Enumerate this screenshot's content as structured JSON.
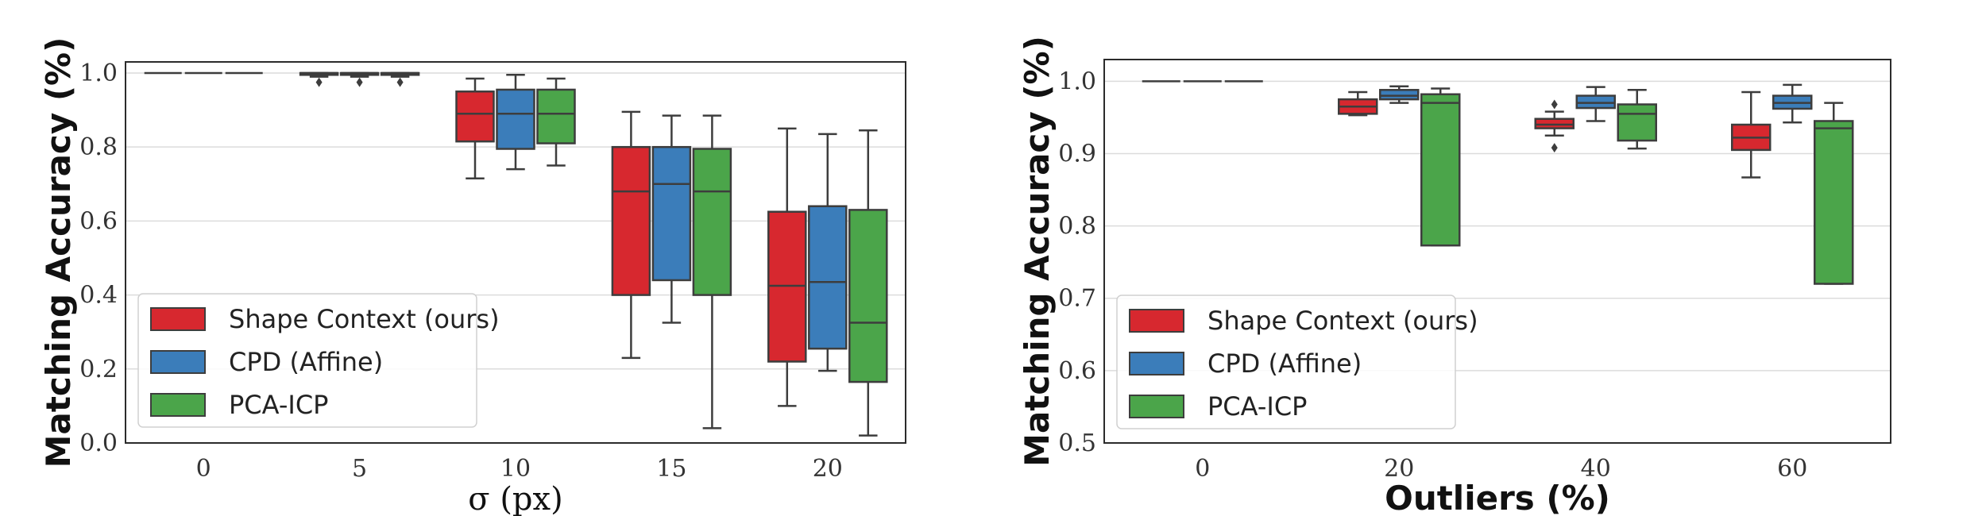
{
  "chart_data": [
    {
      "type": "box",
      "title": "",
      "xlabel": "σ (px)",
      "ylabel": "Matching Accuracy (%)",
      "ylim": [
        0.0,
        1.03
      ],
      "yticks": [
        "0.0",
        "0.2",
        "0.4",
        "0.6",
        "0.8",
        "1.0"
      ],
      "ytick_values": [
        0.0,
        0.2,
        0.4,
        0.6,
        0.8,
        1.0
      ],
      "categories": [
        "0",
        "5",
        "10",
        "15",
        "20"
      ],
      "grid": true,
      "legend_position": "bottom-left",
      "series": [
        {
          "name": "Shape Context (ours)",
          "color": "#d7282f",
          "boxes": [
            {
              "whislo": 1.0,
              "q1": 1.0,
              "med": 1.0,
              "q3": 1.0,
              "whishi": 1.0,
              "fliers": []
            },
            {
              "whislo": 0.99,
              "q1": 0.995,
              "med": 1.0,
              "q3": 1.0,
              "whishi": 1.0,
              "fliers": [
                0.975
              ]
            },
            {
              "whislo": 0.715,
              "q1": 0.815,
              "med": 0.89,
              "q3": 0.95,
              "whishi": 0.985,
              "fliers": []
            },
            {
              "whislo": 0.23,
              "q1": 0.4,
              "med": 0.68,
              "q3": 0.8,
              "whishi": 0.895,
              "fliers": []
            },
            {
              "whislo": 0.1,
              "q1": 0.22,
              "med": 0.425,
              "q3": 0.625,
              "whishi": 0.85,
              "fliers": []
            }
          ]
        },
        {
          "name": "CPD (Affine)",
          "color": "#3b7dba",
          "boxes": [
            {
              "whislo": 1.0,
              "q1": 1.0,
              "med": 1.0,
              "q3": 1.0,
              "whishi": 1.0,
              "fliers": []
            },
            {
              "whislo": 0.99,
              "q1": 0.995,
              "med": 1.0,
              "q3": 1.0,
              "whishi": 1.0,
              "fliers": [
                0.975
              ]
            },
            {
              "whislo": 0.74,
              "q1": 0.795,
              "med": 0.89,
              "q3": 0.955,
              "whishi": 0.995,
              "fliers": []
            },
            {
              "whislo": 0.325,
              "q1": 0.44,
              "med": 0.7,
              "q3": 0.8,
              "whishi": 0.885,
              "fliers": []
            },
            {
              "whislo": 0.195,
              "q1": 0.255,
              "med": 0.435,
              "q3": 0.64,
              "whishi": 0.835,
              "fliers": []
            }
          ]
        },
        {
          "name": "PCA-ICP",
          "color": "#4ba54a",
          "boxes": [
            {
              "whislo": 1.0,
              "q1": 1.0,
              "med": 1.0,
              "q3": 1.0,
              "whishi": 1.0,
              "fliers": []
            },
            {
              "whislo": 0.99,
              "q1": 0.995,
              "med": 1.0,
              "q3": 1.0,
              "whishi": 1.0,
              "fliers": [
                0.975
              ]
            },
            {
              "whislo": 0.75,
              "q1": 0.81,
              "med": 0.89,
              "q3": 0.955,
              "whishi": 0.985,
              "fliers": []
            },
            {
              "whislo": 0.04,
              "q1": 0.4,
              "med": 0.68,
              "q3": 0.795,
              "whishi": 0.885,
              "fliers": []
            },
            {
              "whislo": 0.02,
              "q1": 0.165,
              "med": 0.325,
              "q3": 0.63,
              "whishi": 0.845,
              "fliers": []
            }
          ]
        }
      ]
    },
    {
      "type": "box",
      "title": "",
      "xlabel": "Outliers (%)",
      "ylabel": "Matching Accuracy (%)",
      "ylim": [
        0.5,
        1.03
      ],
      "yticks": [
        "0.5",
        "0.6",
        "0.7",
        "0.8",
        "0.9",
        "1.0"
      ],
      "ytick_values": [
        0.5,
        0.6,
        0.7,
        0.8,
        0.9,
        1.0
      ],
      "categories": [
        "0",
        "20",
        "40",
        "60"
      ],
      "grid": true,
      "legend_position": "bottom-left",
      "series": [
        {
          "name": "Shape Context (ours)",
          "color": "#d7282f",
          "boxes": [
            {
              "whislo": 1.0,
              "q1": 1.0,
              "med": 1.0,
              "q3": 1.0,
              "whishi": 1.0,
              "fliers": []
            },
            {
              "whislo": 0.953,
              "q1": 0.955,
              "med": 0.965,
              "q3": 0.975,
              "whishi": 0.985,
              "fliers": []
            },
            {
              "whislo": 0.925,
              "q1": 0.935,
              "med": 0.94,
              "q3": 0.948,
              "whishi": 0.958,
              "fliers": [
                0.968,
                0.908
              ]
            },
            {
              "whislo": 0.867,
              "q1": 0.905,
              "med": 0.922,
              "q3": 0.94,
              "whishi": 0.985,
              "fliers": []
            }
          ]
        },
        {
          "name": "CPD (Affine)",
          "color": "#3b7dba",
          "boxes": [
            {
              "whislo": 1.0,
              "q1": 1.0,
              "med": 1.0,
              "q3": 1.0,
              "whishi": 1.0,
              "fliers": []
            },
            {
              "whislo": 0.97,
              "q1": 0.975,
              "med": 0.98,
              "q3": 0.988,
              "whishi": 0.993,
              "fliers": []
            },
            {
              "whislo": 0.945,
              "q1": 0.963,
              "med": 0.97,
              "q3": 0.98,
              "whishi": 0.992,
              "fliers": []
            },
            {
              "whislo": 0.943,
              "q1": 0.962,
              "med": 0.97,
              "q3": 0.98,
              "whishi": 0.995,
              "fliers": []
            }
          ]
        },
        {
          "name": "PCA-ICP",
          "color": "#4ba54a",
          "boxes": [
            {
              "whislo": 1.0,
              "q1": 1.0,
              "med": 1.0,
              "q3": 1.0,
              "whishi": 1.0,
              "fliers": []
            },
            {
              "whislo": 0.773,
              "q1": 0.773,
              "med": 0.97,
              "q3": 0.982,
              "whishi": 0.99,
              "fliers": []
            },
            {
              "whislo": 0.907,
              "q1": 0.918,
              "med": 0.955,
              "q3": 0.968,
              "whishi": 0.988,
              "fliers": []
            },
            {
              "whislo": 0.72,
              "q1": 0.72,
              "med": 0.935,
              "q3": 0.945,
              "whishi": 0.97,
              "fliers": []
            }
          ]
        }
      ]
    }
  ]
}
